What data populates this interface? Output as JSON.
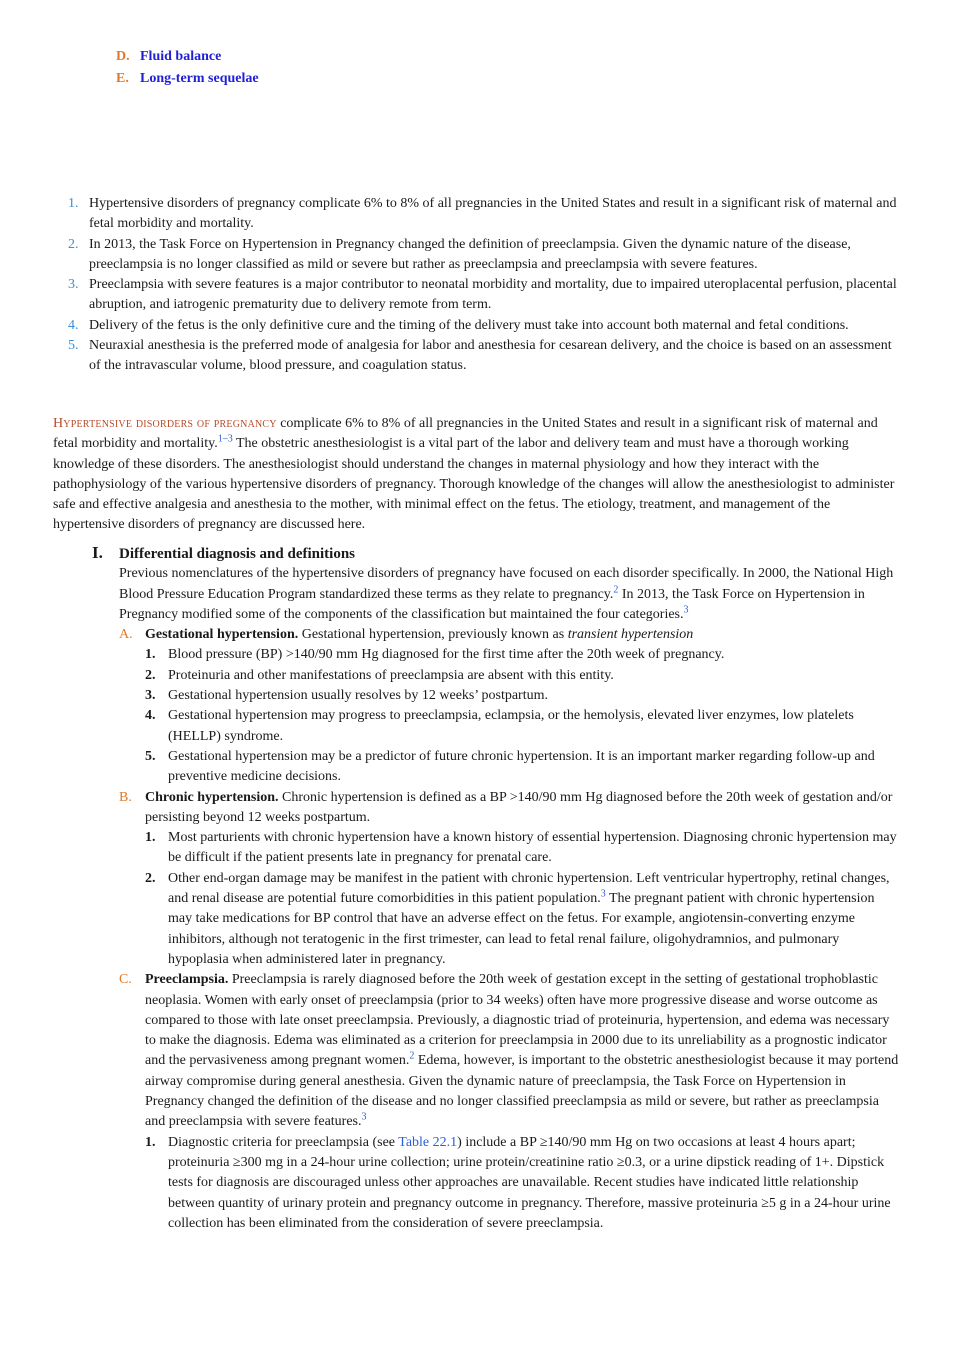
{
  "outline": [
    {
      "letter": "D.",
      "label": "Fluid balance"
    },
    {
      "letter": "E.",
      "label": "Long-term sequelae"
    }
  ],
  "key_points": [
    {
      "num": "1.",
      "text": "Hypertensive disorders of pregnancy complicate 6% to 8% of all pregnancies in the United States and result in a significant risk of maternal and fetal morbidity and mortality."
    },
    {
      "num": "2.",
      "text": "In 2013, the Task Force on Hypertension in Pregnancy changed the definition of preeclampsia. Given the dynamic nature of the disease, preeclampsia is no longer classified as mild or severe but rather as preeclampsia and preeclampsia with severe features."
    },
    {
      "num": "3.",
      "text": "Preeclampsia with severe features is a major contributor to neonatal morbidity and mortality, due to impaired uteroplacental perfusion, placental abruption, and iatrogenic prematurity due to delivery remote from term."
    },
    {
      "num": "4.",
      "text": "Delivery of the fetus is the only definitive cure and the timing of the delivery must take into account both maternal and fetal conditions."
    },
    {
      "num": "5.",
      "text": "Neuraxial anesthesia is the preferred mode of analgesia for labor and anesthesia for cesarean delivery, and the choice is based on an assessment of the intravascular volume, blood pressure, and coagulation status."
    }
  ],
  "intro": {
    "lead": "Hypertensive disorders of pregnancy",
    "part1": " complicate 6% to 8% of all pregnancies in the United States and result in a significant risk of maternal and fetal morbidity and mortality.",
    "ref1": "1–3",
    "part2": " The obstetric anesthesiologist is a vital part of the labor and delivery team and must have a thorough working knowledge of these disorders. The anesthesiologist should understand the changes in maternal physiology and how they interact with the pathophysiology of the various hypertensive disorders of pregnancy. Thorough knowledge of the changes will allow the anesthesiologist to administer safe and effective analgesia and anesthesia to the mother, with minimal effect on the fetus. The etiology, treatment, and management of the hypertensive disorders of pregnancy are discussed here."
  },
  "section": {
    "roman": "I.",
    "title": "Differential diagnosis and definitions",
    "body1": "Previous nomenclatures of the hypertensive disorders of pregnancy have focused on each disorder specifically. In 2000, the National High Blood Pressure Education Program standardized these terms as they relate to pregnancy.",
    "body_ref1": "2",
    "body2": " In 2013, the Task Force on Hypertension in Pregnancy modified some of the components of the classification but maintained the four categories.",
    "body_ref2": "3",
    "A": {
      "letter": "A.",
      "head": "Gestational hypertension.",
      "text": " Gestational hypertension, previously known as ",
      "italic": "transient hypertension",
      "items": [
        {
          "n": "1.",
          "text": "Blood pressure (BP) >140/90 mm Hg diagnosed for the first time after the 20th week of pregnancy."
        },
        {
          "n": "2.",
          "text": "Proteinuria and other manifestations of preeclampsia are absent with this entity."
        },
        {
          "n": "3.",
          "text": "Gestational hypertension usually resolves by 12 weeks’ postpartum."
        },
        {
          "n": "4.",
          "text": "Gestational hypertension may progress to preeclampsia, eclampsia, or the hemolysis, elevated liver enzymes, low platelets (HELLP) syndrome."
        },
        {
          "n": "5.",
          "text": "Gestational hypertension may be a predictor of future chronic hypertension. It is an important marker regarding follow-up and preventive medicine decisions."
        }
      ]
    },
    "B": {
      "letter": "B.",
      "head": "Chronic hypertension.",
      "text": " Chronic hypertension is defined as a BP >140/90 mm Hg diagnosed before the 20th week of gestation and/or persisting beyond 12 weeks postpartum.",
      "item1": "Most parturients with chronic hypertension have a known history of essential hypertension. Diagnosing chronic hypertension may be difficult if the patient presents late in pregnancy for prenatal care.",
      "item2a": "Other end-organ damage may be manifest in the patient with chronic hypertension. Left ventricular hypertrophy, retinal changes, and renal disease are potential future comorbidities in this patient population.",
      "item2_ref": "3",
      "item2b": " The pregnant patient with chronic hypertension may take medications for BP control that have an adverse effect on the fetus. For example, angiotensin-converting enzyme inhibitors, although not teratogenic in the first trimester, can lead to fetal renal failure, oligohydramnios, and pulmonary hypoplasia when administered later in pregnancy.",
      "n1": "1.",
      "n2": "2."
    },
    "C": {
      "letter": "C.",
      "head": "Preeclampsia.",
      "text1": " Preeclampsia is rarely diagnosed before the 20th week of gestation except in the setting of gestational trophoblastic neoplasia. Women with early onset of preeclampsia (prior to 34 weeks) often have more progressive disease and worse outcome as compared to those with late onset preeclampsia. Previously, a diagnostic triad of proteinuria, hypertension, and edema was necessary to make the diagnosis. Edema was eliminated as a criterion for preeclampsia in 2000 due to its unreliability as a prognostic indicator and the pervasiveness among pregnant women.",
      "ref1": "2",
      "text2": " Edema, however, is important to the obstetric anesthesiologist because it may portend airway compromise during general anesthesia. Given the dynamic nature of preeclampsia, the Task Force on Hypertension in Pregnancy changed the definition of the disease and no longer classified preeclampsia as mild or severe, but rather as preeclampsia and preeclampsia with severe features.",
      "ref2": "3",
      "n1": "1.",
      "item1a": "Diagnostic criteria for preeclampsia (see ",
      "item1_link": "Table 22.1",
      "item1b": ") include a BP ≥140/90 mm Hg on two occasions at least 4 hours apart; proteinuria ≥300 mg in a 24-hour urine collection; urine protein/creatinine ratio ≥0.3, or a urine dipstick reading of 1+. Dipstick tests for diagnosis are discouraged unless other approaches are unavailable. Recent studies have indicated little relationship between quantity of urinary protein and pregnancy outcome in pregnancy. Therefore, massive proteinuria ≥5 g in a 24-hour urine collection has been eliminated from the consideration of severe preeclampsia."
    }
  }
}
